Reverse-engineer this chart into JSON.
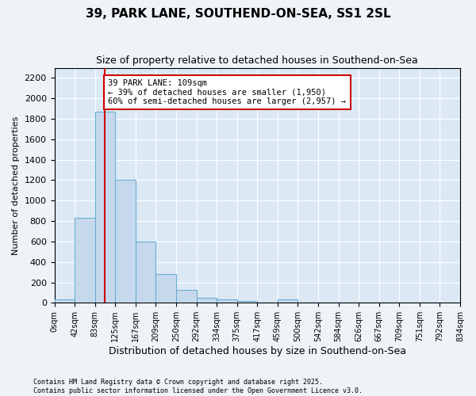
{
  "title": "39, PARK LANE, SOUTHEND-ON-SEA, SS1 2SL",
  "subtitle": "Size of property relative to detached houses in Southend-on-Sea",
  "xlabel": "Distribution of detached houses by size in Southend-on-Sea",
  "ylabel": "Number of detached properties",
  "bar_values": [
    30,
    830,
    1870,
    1200,
    600,
    280,
    130,
    50,
    30,
    20,
    0,
    30,
    0,
    0,
    0,
    0,
    0,
    0,
    0,
    0
  ],
  "bin_labels": [
    "0sqm",
    "42sqm",
    "83sqm",
    "125sqm",
    "167sqm",
    "209sqm",
    "250sqm",
    "292sqm",
    "334sqm",
    "375sqm",
    "417sqm",
    "459sqm",
    "500sqm",
    "542sqm",
    "584sqm",
    "626sqm",
    "667sqm",
    "709sqm",
    "751sqm",
    "792sqm",
    "834sqm"
  ],
  "bar_color": "#c6d9ec",
  "bar_edge_color": "#6aaed6",
  "vline_x": 2.0,
  "vline_color": "#cc0000",
  "annotation_text": "39 PARK LANE: 109sqm\n← 39% of detached houses are smaller (1,950)\n60% of semi-detached houses are larger (2,957) →",
  "annotation_box_color": "#ffffff",
  "annotation_box_edge": "#cc0000",
  "ylim": [
    0,
    2300
  ],
  "yticks": [
    0,
    200,
    400,
    600,
    800,
    1000,
    1200,
    1400,
    1600,
    1800,
    2000,
    2200
  ],
  "grid_color": "#ffffff",
  "background_color": "#dce9f5",
  "fig_background_color": "#eef3f8",
  "footer_line1": "Contains HM Land Registry data © Crown copyright and database right 2025.",
  "footer_line2": "Contains public sector information licensed under the Open Government Licence v3.0."
}
